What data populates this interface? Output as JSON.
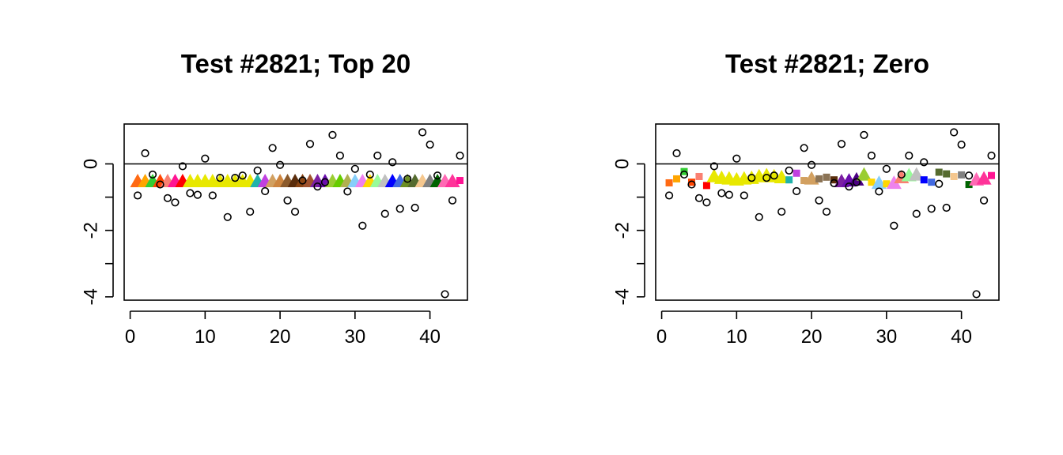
{
  "chart_data": [
    {
      "type": "scatter",
      "title": "Test #2821; Top 20",
      "xlabel": "",
      "ylabel": "",
      "xlim": [
        -0.8,
        45
      ],
      "ylim": [
        -4.1,
        1.2
      ],
      "x_ticks": [
        0,
        10,
        20,
        30,
        40
      ],
      "x_tick_labels": [
        "0",
        "10",
        "20",
        "30",
        "40"
      ],
      "y_ticks": [
        0,
        -1,
        -2,
        -3,
        -4
      ],
      "y_tick_labels": [
        "0",
        "",
        "-2",
        "",
        "-4"
      ],
      "hline": 0,
      "grid": false,
      "legend": "none",
      "observed": {
        "x": [
          1,
          2,
          3,
          4,
          5,
          6,
          7,
          8,
          9,
          10,
          11,
          12,
          13,
          14,
          15,
          16,
          17,
          18,
          19,
          20,
          21,
          22,
          23,
          24,
          25,
          26,
          27,
          28,
          29,
          30,
          31,
          32,
          33,
          34,
          35,
          36,
          37,
          38,
          39,
          40,
          41,
          42,
          43,
          44
        ],
        "y": [
          -0.95,
          0.32,
          -0.32,
          -0.62,
          -1.03,
          -1.16,
          -0.07,
          -0.88,
          -0.93,
          0.16,
          -0.95,
          -0.42,
          -1.6,
          -0.42,
          -0.35,
          -1.44,
          -0.2,
          -0.82,
          0.48,
          -0.03,
          -1.1,
          -1.44,
          -0.5,
          0.6,
          -0.68,
          -0.55,
          0.87,
          0.25,
          -0.83,
          -0.15,
          -1.86,
          -0.32,
          0.25,
          -1.5,
          0.05,
          -1.35,
          -0.45,
          -1.32,
          0.95,
          0.58,
          -0.35,
          -3.92,
          -1.1,
          0.25
        ]
      },
      "estimates": {
        "x": [
          1,
          2,
          3,
          4,
          5,
          6,
          7,
          8,
          9,
          10,
          11,
          12,
          13,
          14,
          15,
          16,
          17,
          18,
          19,
          20,
          21,
          22,
          23,
          24,
          25,
          26,
          27,
          28,
          29,
          30,
          31,
          32,
          33,
          34,
          35,
          36,
          37,
          38,
          39,
          40,
          41,
          42,
          43,
          44
        ],
        "y": [
          -0.5,
          -0.5,
          -0.5,
          -0.5,
          -0.5,
          -0.5,
          -0.5,
          -0.5,
          -0.5,
          -0.5,
          -0.5,
          -0.5,
          -0.5,
          -0.5,
          -0.5,
          -0.5,
          -0.5,
          -0.5,
          -0.5,
          -0.5,
          -0.5,
          -0.5,
          -0.5,
          -0.5,
          -0.5,
          -0.5,
          -0.5,
          -0.5,
          -0.5,
          -0.5,
          -0.5,
          -0.5,
          -0.5,
          -0.5,
          -0.5,
          -0.5,
          -0.5,
          -0.5,
          -0.5,
          -0.5,
          -0.5,
          -0.5,
          -0.5,
          -0.5
        ],
        "shape": [
          "tri",
          "tri",
          "tri",
          "tri",
          "tri",
          "tri",
          "tri",
          "tri",
          "tri",
          "tri",
          "tri",
          "tri",
          "tri",
          "tri",
          "tri",
          "tri",
          "tri",
          "tri",
          "tri",
          "tri",
          "tri",
          "tri",
          "tri",
          "tri",
          "tri",
          "tri",
          "tri",
          "tri",
          "tri",
          "tri",
          "tri",
          "tri",
          "tri",
          "tri",
          "tri",
          "tri",
          "tri",
          "tri",
          "tri",
          "tri",
          "tri",
          "tri",
          "tri",
          "sq"
        ],
        "color": [
          "#ff6a13",
          "#ffa500",
          "#32cd32",
          "#ff4500",
          "#fa8072",
          "#ff1493",
          "#ff0000",
          "#e8e800",
          "#e8e800",
          "#e8e800",
          "#e8e800",
          "#e8e800",
          "#e8e800",
          "#e8e800",
          "#e8e800",
          "#e8e800",
          "#20b2aa",
          "#c040e0",
          "#d2a060",
          "#cd853f",
          "#8b5a2b",
          "#5a2d0c",
          "#8b4513",
          "#a0522d",
          "#7b1fa2",
          "#6a0dad",
          "#9acd32",
          "#66cc00",
          "#b0b050",
          "#87cefa",
          "#ee82ee",
          "#ffd700",
          "#98fb98",
          "#c0c0c0",
          "#0000ff",
          "#4169e1",
          "#6b8e23",
          "#556b2f",
          "#f5c78e",
          "#808080",
          "#006400",
          "#ff69b4",
          "#ff3399",
          "#ff1493"
        ]
      }
    },
    {
      "type": "scatter",
      "title": "Test #2821; Zero",
      "xlabel": "",
      "ylabel": "",
      "xlim": [
        -0.8,
        45
      ],
      "ylim": [
        -4.1,
        1.2
      ],
      "x_ticks": [
        0,
        10,
        20,
        30,
        40
      ],
      "x_tick_labels": [
        "0",
        "10",
        "20",
        "30",
        "40"
      ],
      "y_ticks": [
        0,
        -1,
        -2,
        -3,
        -4
      ],
      "y_tick_labels": [
        "0",
        "",
        "-2",
        "",
        "-4"
      ],
      "hline": 0,
      "grid": false,
      "legend": "none",
      "observed": {
        "x": [
          1,
          2,
          3,
          4,
          5,
          6,
          7,
          8,
          9,
          10,
          11,
          12,
          13,
          14,
          15,
          16,
          17,
          18,
          19,
          20,
          21,
          22,
          23,
          24,
          25,
          26,
          27,
          28,
          29,
          30,
          31,
          32,
          33,
          34,
          35,
          36,
          37,
          38,
          39,
          40,
          41,
          42,
          43,
          44
        ],
        "y": [
          -0.95,
          0.32,
          -0.32,
          -0.62,
          -1.03,
          -1.16,
          -0.07,
          -0.88,
          -0.93,
          0.16,
          -0.95,
          -0.42,
          -1.6,
          -0.42,
          -0.35,
          -1.44,
          -0.2,
          -0.82,
          0.48,
          -0.03,
          -1.1,
          -1.44,
          -0.58,
          0.6,
          -0.68,
          -0.55,
          0.87,
          0.25,
          -0.83,
          -0.15,
          -1.86,
          -0.32,
          0.25,
          -1.5,
          0.05,
          -1.35,
          -0.6,
          -1.32,
          0.95,
          0.58,
          -0.35,
          -3.92,
          -1.1,
          0.25
        ]
      },
      "estimates": {
        "x": [
          1,
          2,
          3,
          4,
          5,
          6,
          7,
          8,
          9,
          10,
          11,
          12,
          13,
          14,
          15,
          16,
          17,
          18,
          19,
          20,
          21,
          22,
          23,
          24,
          25,
          26,
          27,
          28,
          29,
          30,
          31,
          32,
          33,
          34,
          35,
          36,
          37,
          38,
          39,
          40,
          41,
          42,
          43,
          44
        ],
        "y": [
          -0.57,
          -0.45,
          -0.23,
          -0.55,
          -0.38,
          -0.65,
          -0.35,
          -0.4,
          -0.42,
          -0.45,
          -0.42,
          -0.4,
          -0.35,
          -0.32,
          -0.35,
          -0.38,
          -0.48,
          -0.28,
          -0.5,
          -0.42,
          -0.45,
          -0.4,
          -0.48,
          -0.5,
          -0.48,
          -0.45,
          -0.3,
          -0.55,
          -0.55,
          -0.6,
          -0.55,
          -0.38,
          -0.32,
          -0.3,
          -0.48,
          -0.55,
          -0.25,
          -0.3,
          -0.38,
          -0.33,
          -0.62,
          -0.45,
          -0.42,
          -0.35
        ],
        "shape": [
          "sq",
          "sq",
          "sq",
          "sq",
          "sq",
          "sq",
          "tri",
          "tri",
          "tri",
          "tri",
          "tri",
          "tri",
          "tri",
          "tri",
          "tri",
          "tri",
          "sq",
          "sq",
          "sq",
          "tri",
          "sq",
          "sq",
          "sq",
          "tri",
          "tri",
          "tri",
          "tri",
          "sq",
          "tri",
          "sq",
          "tri",
          "tri",
          "tri",
          "tri",
          "sq",
          "sq",
          "sq",
          "sq",
          "sq",
          "sq",
          "sq",
          "tri",
          "tri",
          "sq"
        ],
        "color": [
          "#ff6a13",
          "#ffa500",
          "#32cd32",
          "#ff4500",
          "#fa8072",
          "#ff0000",
          "#e8e800",
          "#e8e800",
          "#e8e800",
          "#e8e800",
          "#e8e800",
          "#e8e800",
          "#e8e800",
          "#e8e800",
          "#e8e800",
          "#e8e800",
          "#20b2aa",
          "#c040e0",
          "#d2a060",
          "#d2a060",
          "#8b7355",
          "#8b7355",
          "#5a2d0c",
          "#7b1fa2",
          "#6a0dad",
          "#4b0082",
          "#9acd32",
          "#ffd700",
          "#87cefa",
          "#ffd700",
          "#ee82ee",
          "#fa8072",
          "#98fb98",
          "#c0c0c0",
          "#0000ff",
          "#4169e1",
          "#556b2f",
          "#556b2f",
          "#f5c78e",
          "#808080",
          "#006400",
          "#ff69b4",
          "#ff3399",
          "#ff1493"
        ]
      }
    }
  ]
}
